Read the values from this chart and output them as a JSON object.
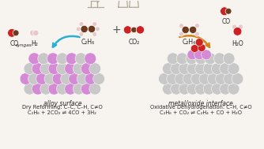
{
  "bg_color": "#f7f3ee",
  "left_panel": {
    "label_surface": "alloy surface",
    "label_reaction": "Dry Reforming: C–C, C–H, C≠O",
    "label_equation": "C₂H₆ + 2CO₂ ⇌ 4CO + 3H₂",
    "arrow_color": "#29aed4"
  },
  "right_panel": {
    "label_surface": "metal/oxide interface",
    "label_reaction": "Oxidative Dehydrogenation: C–H, C≠O",
    "label_equation": "C₂H₆ + CO₂ ⇌ C₂H₄ + CO + H₂O",
    "arrow_color": "#d4821a"
  },
  "mol": {
    "O_col": "#cc2222",
    "C_col": "#6b3a1f",
    "H_col": "#e8c8c8"
  },
  "pink": "#d48ad4",
  "gray_ball": "#c8c8c8",
  "gray_ball2": "#b8b8b8",
  "red_oxide": "#cc2222",
  "icon_color": "#b0a898",
  "text_color": "#2a2a2a",
  "fs_label": 5.5,
  "fs_small": 4.8,
  "fs_eq": 4.8
}
